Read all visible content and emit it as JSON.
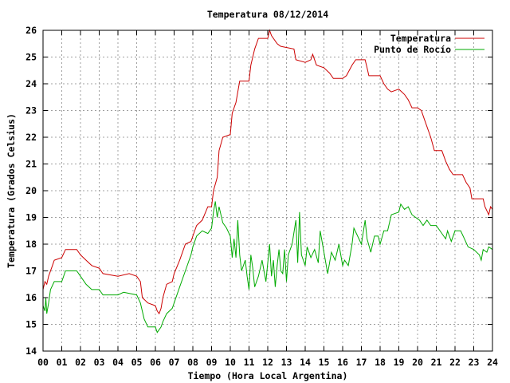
{
  "chart_data": {
    "type": "line",
    "title": "Temperatura 08/12/2014",
    "xlabel": "Tiempo (Hora Local Argentina)",
    "ylabel": "Temperatura (Grados Celsius)",
    "xlim": [
      0,
      24
    ],
    "ylim": [
      14,
      26
    ],
    "x_ticks": [
      0,
      1,
      2,
      3,
      4,
      5,
      6,
      7,
      8,
      9,
      10,
      11,
      12,
      13,
      14,
      15,
      16,
      17,
      18,
      19,
      20,
      21,
      22,
      23,
      24
    ],
    "x_tick_labels": [
      "00",
      "01",
      "02",
      "03",
      "04",
      "05",
      "06",
      "07",
      "08",
      "09",
      "10",
      "11",
      "12",
      "13",
      "14",
      "15",
      "16",
      "17",
      "18",
      "19",
      "20",
      "21",
      "22",
      "23",
      "24"
    ],
    "y_ticks": [
      14,
      15,
      16,
      17,
      18,
      19,
      20,
      21,
      22,
      23,
      24,
      25,
      26
    ],
    "grid": true,
    "legend_position": "top-right",
    "series": [
      {
        "name": "Temperatura",
        "color": "#cc0000",
        "points": [
          [
            0,
            16.3
          ],
          [
            0.1,
            16.6
          ],
          [
            0.2,
            16.5
          ],
          [
            0.3,
            16.8
          ],
          [
            0.5,
            17.2
          ],
          [
            0.6,
            17.4
          ],
          [
            1.0,
            17.5
          ],
          [
            1.2,
            17.8
          ],
          [
            1.8,
            17.8
          ],
          [
            2.0,
            17.6
          ],
          [
            2.3,
            17.4
          ],
          [
            2.6,
            17.2
          ],
          [
            3.0,
            17.1
          ],
          [
            3.2,
            16.9
          ],
          [
            4.0,
            16.8
          ],
          [
            4.6,
            16.9
          ],
          [
            5.0,
            16.8
          ],
          [
            5.2,
            16.6
          ],
          [
            5.3,
            16.0
          ],
          [
            5.6,
            15.8
          ],
          [
            6.0,
            15.7
          ],
          [
            6.1,
            15.5
          ],
          [
            6.2,
            15.4
          ],
          [
            6.3,
            15.6
          ],
          [
            6.4,
            16.0
          ],
          [
            6.6,
            16.5
          ],
          [
            6.9,
            16.6
          ],
          [
            7.0,
            16.9
          ],
          [
            7.3,
            17.4
          ],
          [
            7.6,
            18.0
          ],
          [
            7.9,
            18.1
          ],
          [
            8.0,
            18.3
          ],
          [
            8.2,
            18.7
          ],
          [
            8.5,
            18.9
          ],
          [
            8.8,
            19.4
          ],
          [
            9.0,
            19.4
          ],
          [
            9.1,
            20.0
          ],
          [
            9.3,
            20.5
          ],
          [
            9.4,
            21.5
          ],
          [
            9.6,
            22.0
          ],
          [
            10.0,
            22.1
          ],
          [
            10.1,
            22.9
          ],
          [
            10.3,
            23.3
          ],
          [
            10.5,
            24.1
          ],
          [
            11.0,
            24.1
          ],
          [
            11.1,
            24.7
          ],
          [
            11.3,
            25.3
          ],
          [
            11.5,
            25.7
          ],
          [
            12.0,
            25.7
          ],
          [
            12.1,
            26.0
          ],
          [
            12.2,
            25.8
          ],
          [
            12.5,
            25.5
          ],
          [
            12.7,
            25.4
          ],
          [
            13.4,
            25.3
          ],
          [
            13.5,
            24.9
          ],
          [
            14.0,
            24.8
          ],
          [
            14.3,
            24.9
          ],
          [
            14.4,
            25.1
          ],
          [
            14.6,
            24.7
          ],
          [
            15.0,
            24.6
          ],
          [
            15.3,
            24.4
          ],
          [
            15.5,
            24.2
          ],
          [
            16.0,
            24.2
          ],
          [
            16.2,
            24.3
          ],
          [
            16.5,
            24.7
          ],
          [
            16.7,
            24.9
          ],
          [
            17.2,
            24.9
          ],
          [
            17.3,
            24.6
          ],
          [
            17.4,
            24.3
          ],
          [
            18.0,
            24.3
          ],
          [
            18.2,
            24.0
          ],
          [
            18.4,
            23.8
          ],
          [
            18.6,
            23.7
          ],
          [
            19.0,
            23.8
          ],
          [
            19.3,
            23.6
          ],
          [
            19.5,
            23.4
          ],
          [
            19.7,
            23.1
          ],
          [
            20.0,
            23.1
          ],
          [
            20.2,
            23.0
          ],
          [
            20.4,
            22.6
          ],
          [
            20.7,
            22.0
          ],
          [
            20.9,
            21.5
          ],
          [
            21.3,
            21.5
          ],
          [
            21.5,
            21.1
          ],
          [
            21.7,
            20.8
          ],
          [
            21.9,
            20.6
          ],
          [
            22.4,
            20.6
          ],
          [
            22.6,
            20.3
          ],
          [
            22.8,
            20.1
          ],
          [
            22.9,
            19.7
          ],
          [
            23.5,
            19.7
          ],
          [
            23.6,
            19.4
          ],
          [
            23.8,
            19.1
          ],
          [
            23.9,
            19.4
          ],
          [
            24.0,
            19.3
          ]
        ]
      },
      {
        "name": "Punto de Rocío",
        "color": "#00aa00",
        "points": [
          [
            0,
            15.7
          ],
          [
            0.1,
            15.5
          ],
          [
            0.15,
            16.0
          ],
          [
            0.2,
            15.4
          ],
          [
            0.3,
            15.8
          ],
          [
            0.4,
            16.3
          ],
          [
            0.6,
            16.6
          ],
          [
            1.0,
            16.6
          ],
          [
            1.2,
            17.0
          ],
          [
            1.8,
            17.0
          ],
          [
            2.0,
            16.8
          ],
          [
            2.3,
            16.5
          ],
          [
            2.6,
            16.3
          ],
          [
            3.0,
            16.3
          ],
          [
            3.2,
            16.1
          ],
          [
            4.0,
            16.1
          ],
          [
            4.3,
            16.2
          ],
          [
            5.0,
            16.1
          ],
          [
            5.2,
            15.8
          ],
          [
            5.4,
            15.2
          ],
          [
            5.6,
            14.9
          ],
          [
            6.0,
            14.9
          ],
          [
            6.1,
            14.7
          ],
          [
            6.2,
            14.8
          ],
          [
            6.3,
            14.9
          ],
          [
            6.4,
            15.1
          ],
          [
            6.6,
            15.4
          ],
          [
            6.9,
            15.6
          ],
          [
            7.0,
            15.8
          ],
          [
            7.3,
            16.4
          ],
          [
            7.6,
            17.0
          ],
          [
            7.9,
            17.6
          ],
          [
            8.0,
            17.9
          ],
          [
            8.2,
            18.3
          ],
          [
            8.5,
            18.5
          ],
          [
            8.8,
            18.4
          ],
          [
            9.0,
            18.6
          ],
          [
            9.1,
            19.2
          ],
          [
            9.2,
            19.6
          ],
          [
            9.3,
            19.0
          ],
          [
            9.4,
            19.4
          ],
          [
            9.6,
            18.8
          ],
          [
            9.8,
            18.6
          ],
          [
            10.0,
            18.3
          ],
          [
            10.1,
            17.5
          ],
          [
            10.2,
            18.2
          ],
          [
            10.3,
            17.5
          ],
          [
            10.4,
            18.9
          ],
          [
            10.5,
            17.6
          ],
          [
            10.6,
            17.0
          ],
          [
            10.8,
            17.4
          ],
          [
            10.9,
            16.8
          ],
          [
            11.0,
            16.3
          ],
          [
            11.1,
            17.6
          ],
          [
            11.2,
            17.1
          ],
          [
            11.3,
            16.4
          ],
          [
            11.5,
            16.8
          ],
          [
            11.7,
            17.4
          ],
          [
            11.9,
            16.6
          ],
          [
            12.1,
            18.0
          ],
          [
            12.2,
            16.8
          ],
          [
            12.3,
            17.4
          ],
          [
            12.4,
            16.4
          ],
          [
            12.5,
            17.2
          ],
          [
            12.6,
            17.8
          ],
          [
            12.7,
            17.0
          ],
          [
            12.8,
            16.9
          ],
          [
            12.9,
            17.8
          ],
          [
            13.0,
            16.6
          ],
          [
            13.1,
            17.6
          ],
          [
            13.3,
            18.0
          ],
          [
            13.5,
            18.9
          ],
          [
            13.6,
            17.3
          ],
          [
            13.7,
            19.2
          ],
          [
            13.8,
            17.6
          ],
          [
            14.0,
            17.2
          ],
          [
            14.1,
            17.9
          ],
          [
            14.3,
            17.5
          ],
          [
            14.5,
            17.8
          ],
          [
            14.7,
            17.3
          ],
          [
            14.8,
            18.5
          ],
          [
            15.0,
            17.7
          ],
          [
            15.2,
            16.9
          ],
          [
            15.4,
            17.7
          ],
          [
            15.6,
            17.4
          ],
          [
            15.8,
            18.0
          ],
          [
            16.0,
            17.2
          ],
          [
            16.1,
            17.4
          ],
          [
            16.3,
            17.2
          ],
          [
            16.5,
            18.0
          ],
          [
            16.6,
            18.6
          ],
          [
            16.8,
            18.3
          ],
          [
            17.0,
            18.0
          ],
          [
            17.2,
            18.9
          ],
          [
            17.3,
            18.2
          ],
          [
            17.5,
            17.7
          ],
          [
            17.7,
            18.3
          ],
          [
            17.9,
            18.3
          ],
          [
            18.0,
            18.0
          ],
          [
            18.2,
            18.5
          ],
          [
            18.4,
            18.5
          ],
          [
            18.6,
            19.1
          ],
          [
            19.0,
            19.2
          ],
          [
            19.1,
            19.5
          ],
          [
            19.3,
            19.3
          ],
          [
            19.5,
            19.4
          ],
          [
            19.7,
            19.1
          ],
          [
            19.9,
            19.0
          ],
          [
            20.1,
            18.9
          ],
          [
            20.3,
            18.7
          ],
          [
            20.5,
            18.9
          ],
          [
            20.7,
            18.7
          ],
          [
            21.0,
            18.7
          ],
          [
            21.3,
            18.4
          ],
          [
            21.5,
            18.2
          ],
          [
            21.6,
            18.5
          ],
          [
            21.8,
            18.1
          ],
          [
            22.0,
            18.5
          ],
          [
            22.3,
            18.5
          ],
          [
            22.5,
            18.2
          ],
          [
            22.7,
            17.9
          ],
          [
            23.0,
            17.8
          ],
          [
            23.3,
            17.6
          ],
          [
            23.4,
            17.4
          ],
          [
            23.5,
            17.8
          ],
          [
            23.7,
            17.7
          ],
          [
            23.8,
            17.9
          ],
          [
            24.0,
            17.8
          ]
        ]
      }
    ]
  }
}
